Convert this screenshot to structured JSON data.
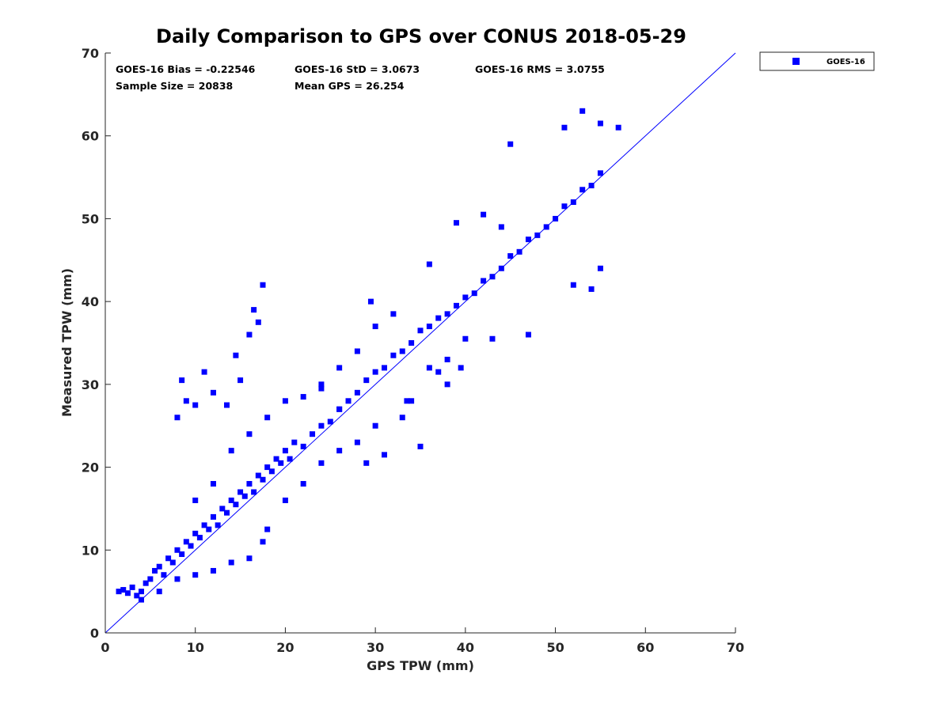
{
  "chart_data": {
    "type": "scatter",
    "title": "Daily Comparison to GPS over CONUS 2018-05-29",
    "xlabel": "GPS TPW (mm)",
    "ylabel": "Measured TPW (mm)",
    "xlim": [
      0,
      70
    ],
    "ylim": [
      0,
      70
    ],
    "xticks": [
      "0",
      "10",
      "20",
      "30",
      "40",
      "50",
      "60",
      "70"
    ],
    "yticks": [
      "0",
      "10",
      "20",
      "30",
      "40",
      "50",
      "60",
      "70"
    ],
    "grid": false,
    "legend_position": "outside-top-right",
    "marker": "square",
    "stats": [
      "GOES-16 Bias = -0.22546",
      "GOES-16 StD = 3.0673",
      "GOES-16 RMS = 3.0755",
      "Sample Size = 20838",
      "Mean GPS = 26.254"
    ],
    "reference_line": {
      "name": "1:1 line",
      "x": [
        0,
        70
      ],
      "y": [
        0,
        70
      ]
    },
    "series": [
      {
        "name": "GOES-16",
        "color": "#0000ff",
        "points": [
          [
            1.5,
            5.0
          ],
          [
            2.0,
            5.2
          ],
          [
            2.5,
            4.8
          ],
          [
            3.0,
            5.5
          ],
          [
            3.5,
            4.5
          ],
          [
            4.0,
            5.0
          ],
          [
            4.5,
            6.0
          ],
          [
            5.0,
            6.5
          ],
          [
            5.5,
            7.5
          ],
          [
            6.0,
            8.0
          ],
          [
            6.5,
            7.0
          ],
          [
            7.0,
            9.0
          ],
          [
            7.5,
            8.5
          ],
          [
            8.0,
            10.0
          ],
          [
            8.5,
            9.5
          ],
          [
            9.0,
            11.0
          ],
          [
            9.5,
            10.5
          ],
          [
            10.0,
            12.0
          ],
          [
            10.5,
            11.5
          ],
          [
            11.0,
            13.0
          ],
          [
            11.5,
            12.5
          ],
          [
            12.0,
            14.0
          ],
          [
            12.5,
            13.0
          ],
          [
            13.0,
            15.0
          ],
          [
            13.5,
            14.5
          ],
          [
            14.0,
            16.0
          ],
          [
            14.5,
            15.5
          ],
          [
            15.0,
            17.0
          ],
          [
            15.5,
            16.5
          ],
          [
            16.0,
            18.0
          ],
          [
            16.5,
            17.0
          ],
          [
            17.0,
            19.0
          ],
          [
            17.5,
            18.5
          ],
          [
            18.0,
            20.0
          ],
          [
            18.5,
            19.5
          ],
          [
            19.0,
            21.0
          ],
          [
            19.5,
            20.5
          ],
          [
            20.0,
            22.0
          ],
          [
            20.5,
            21.0
          ],
          [
            21.0,
            23.0
          ],
          [
            22.0,
            22.5
          ],
          [
            23.0,
            24.0
          ],
          [
            24.0,
            25.0
          ],
          [
            25.0,
            25.5
          ],
          [
            26.0,
            27.0
          ],
          [
            27.0,
            28.0
          ],
          [
            28.0,
            29.0
          ],
          [
            29.0,
            30.5
          ],
          [
            30.0,
            31.5
          ],
          [
            31.0,
            32.0
          ],
          [
            32.0,
            33.5
          ],
          [
            33.0,
            34.0
          ],
          [
            34.0,
            35.0
          ],
          [
            35.0,
            36.5
          ],
          [
            36.0,
            37.0
          ],
          [
            37.0,
            38.0
          ],
          [
            38.0,
            38.5
          ],
          [
            39.0,
            39.5
          ],
          [
            40.0,
            40.5
          ],
          [
            41.0,
            41.0
          ],
          [
            42.0,
            42.5
          ],
          [
            43.0,
            43.0
          ],
          [
            44.0,
            44.0
          ],
          [
            45.0,
            45.5
          ],
          [
            46.0,
            46.0
          ],
          [
            47.0,
            47.5
          ],
          [
            48.0,
            48.0
          ],
          [
            49.0,
            49.0
          ],
          [
            50.0,
            50.0
          ],
          [
            51.0,
            51.5
          ],
          [
            52.0,
            52.0
          ],
          [
            53.0,
            53.5
          ],
          [
            54.0,
            54.0
          ],
          [
            55.0,
            55.5
          ],
          [
            57.0,
            61.0
          ],
          [
            55.0,
            61.5
          ],
          [
            53.0,
            63.0
          ],
          [
            51.0,
            61.0
          ],
          [
            45.0,
            59.0
          ],
          [
            54.0,
            41.5
          ],
          [
            55.0,
            44.0
          ],
          [
            52.0,
            42.0
          ],
          [
            47.0,
            36.0
          ],
          [
            43.0,
            35.5
          ],
          [
            40.0,
            35.5
          ],
          [
            38.0,
            33.0
          ],
          [
            36.0,
            32.0
          ],
          [
            34.0,
            28.0
          ],
          [
            33.0,
            26.0
          ],
          [
            30.0,
            25.0
          ],
          [
            28.0,
            23.0
          ],
          [
            26.0,
            22.0
          ],
          [
            24.0,
            20.5
          ],
          [
            22.0,
            18.0
          ],
          [
            20.0,
            16.0
          ],
          [
            18.0,
            12.5
          ],
          [
            17.5,
            11.0
          ],
          [
            16.0,
            9.0
          ],
          [
            14.0,
            8.5
          ],
          [
            12.0,
            7.5
          ],
          [
            10.0,
            7.0
          ],
          [
            8.0,
            6.5
          ],
          [
            6.0,
            5.0
          ],
          [
            4.0,
            4.0
          ],
          [
            10.0,
            16.0
          ],
          [
            12.0,
            18.0
          ],
          [
            14.0,
            22.0
          ],
          [
            16.0,
            24.0
          ],
          [
            18.0,
            26.0
          ],
          [
            20.0,
            28.0
          ],
          [
            22.0,
            28.5
          ],
          [
            24.0,
            30.0
          ],
          [
            26.0,
            32.0
          ],
          [
            28.0,
            34.0
          ],
          [
            30.0,
            37.0
          ],
          [
            32.0,
            38.5
          ],
          [
            29.5,
            40.0
          ],
          [
            36.0,
            44.5
          ],
          [
            39.0,
            49.5
          ],
          [
            42.0,
            50.5
          ],
          [
            44.0,
            49.0
          ],
          [
            8.0,
            26.0
          ],
          [
            8.5,
            30.5
          ],
          [
            9.0,
            28.0
          ],
          [
            10.0,
            27.5
          ],
          [
            11.0,
            31.5
          ],
          [
            12.0,
            29.0
          ],
          [
            13.5,
            27.5
          ],
          [
            14.5,
            33.5
          ],
          [
            15.0,
            30.5
          ],
          [
            16.0,
            36.0
          ],
          [
            16.5,
            39.0
          ],
          [
            17.0,
            37.5
          ],
          [
            17.5,
            42.0
          ],
          [
            24.0,
            29.5
          ],
          [
            26.0,
            27.0
          ],
          [
            31.0,
            21.5
          ],
          [
            29.0,
            20.5
          ],
          [
            35.0,
            22.5
          ],
          [
            33.5,
            28.0
          ],
          [
            38.0,
            30.0
          ],
          [
            39.5,
            32.0
          ],
          [
            37.0,
            31.5
          ]
        ]
      }
    ]
  }
}
